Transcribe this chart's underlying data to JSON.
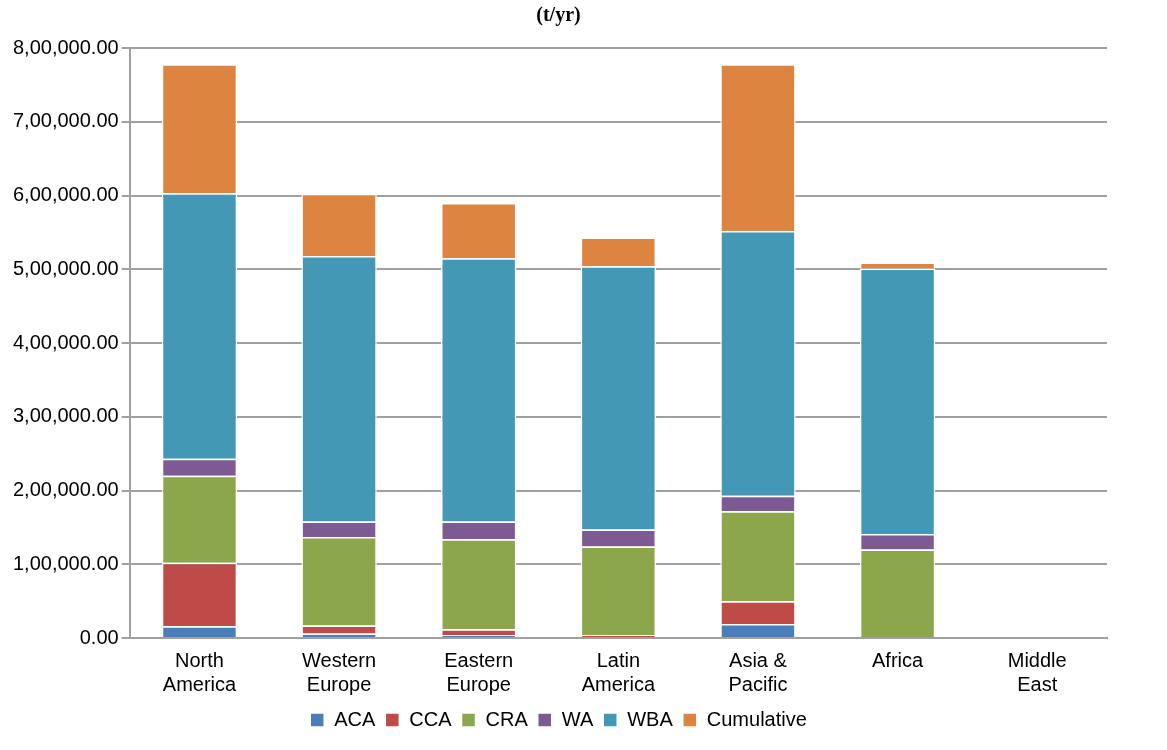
{
  "chart_data": {
    "type": "bar",
    "title": "(t/yr)",
    "stacked": true,
    "legend": "bottom",
    "grid": "y",
    "categories": [
      "North America",
      "Western Europe",
      "Eastern Europe",
      "Latin America",
      "Asia & Pacific",
      "Africa",
      "Middle East"
    ],
    "ylim": [
      0,
      800000
    ],
    "yticks": [
      {
        "value": 0,
        "label": "0.00"
      },
      {
        "value": 100000,
        "label": "1,00,000.00"
      },
      {
        "value": 200000,
        "label": "2,00,000.00"
      },
      {
        "value": 300000,
        "label": "3,00,000.00"
      },
      {
        "value": 400000,
        "label": "4,00,000.00"
      },
      {
        "value": 500000,
        "label": "5,00,000.00"
      },
      {
        "value": 600000,
        "label": "6,00,000.00"
      },
      {
        "value": 700000,
        "label": "7,00,000.00"
      },
      {
        "value": 800000,
        "label": "8,00,000.00"
      }
    ],
    "series": [
      {
        "name": "ACA",
        "color": "#4a7ebb",
        "values": [
          16000,
          6000,
          4000,
          0,
          19000,
          0,
          0
        ]
      },
      {
        "name": "CCA",
        "color": "#be4b48",
        "values": [
          86000,
          11000,
          8000,
          4000,
          31000,
          null,
          0
        ]
      },
      {
        "name": "CRA",
        "color": "#8ba64b",
        "values": [
          118000,
          120000,
          122000,
          120000,
          122000,
          120000,
          0
        ]
      },
      {
        "name": "WA",
        "color": "#7d5a94",
        "values": [
          23000,
          21000,
          24000,
          23000,
          21000,
          21000,
          0
        ]
      },
      {
        "name": "WBA",
        "color": "#4298b5",
        "values": [
          360000,
          360000,
          357000,
          357000,
          359000,
          360000,
          0
        ]
      },
      {
        "name": "Cumulative",
        "color": "#dd8440",
        "values": [
          175000,
          84000,
          75000,
          39000,
          226000,
          8000,
          0
        ]
      }
    ]
  }
}
